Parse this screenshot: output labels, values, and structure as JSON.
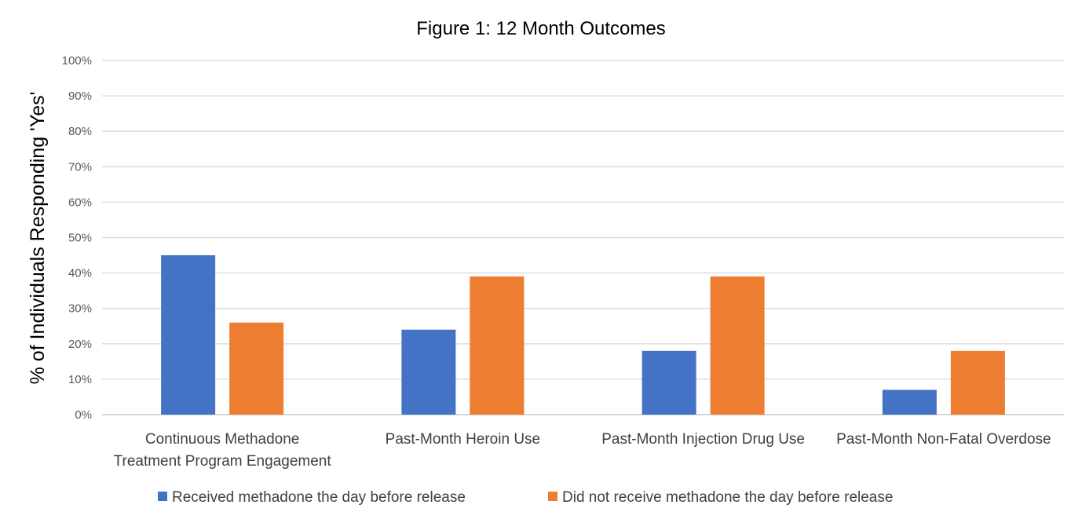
{
  "chart_data": {
    "type": "bar",
    "title": "Figure 1: 12 Month Outcomes",
    "xlabel": "",
    "ylabel": "% of Individuals Responding 'Yes'",
    "ylim": [
      0,
      100
    ],
    "yticks": [
      0,
      10,
      20,
      30,
      40,
      50,
      60,
      70,
      80,
      90,
      100
    ],
    "ytick_labels": [
      "0%",
      "10%",
      "20%",
      "30%",
      "40%",
      "50%",
      "60%",
      "70%",
      "80%",
      "90%",
      "100%"
    ],
    "categories": [
      [
        "Continuous Methadone",
        "Treatment Program Engagement"
      ],
      [
        "Past-Month Heroin Use"
      ],
      [
        "Past-Month Injection Drug Use"
      ],
      [
        "Past-Month Non-Fatal Overdose"
      ]
    ],
    "series": [
      {
        "name": "Received methadone the day before release",
        "color": "#4472C4",
        "values": [
          45,
          24,
          18,
          7
        ]
      },
      {
        "name": "Did not receive methadone the day before release",
        "color": "#ED7D31",
        "values": [
          26,
          39,
          39,
          18
        ]
      }
    ],
    "grid": true,
    "legend_position": "bottom"
  }
}
